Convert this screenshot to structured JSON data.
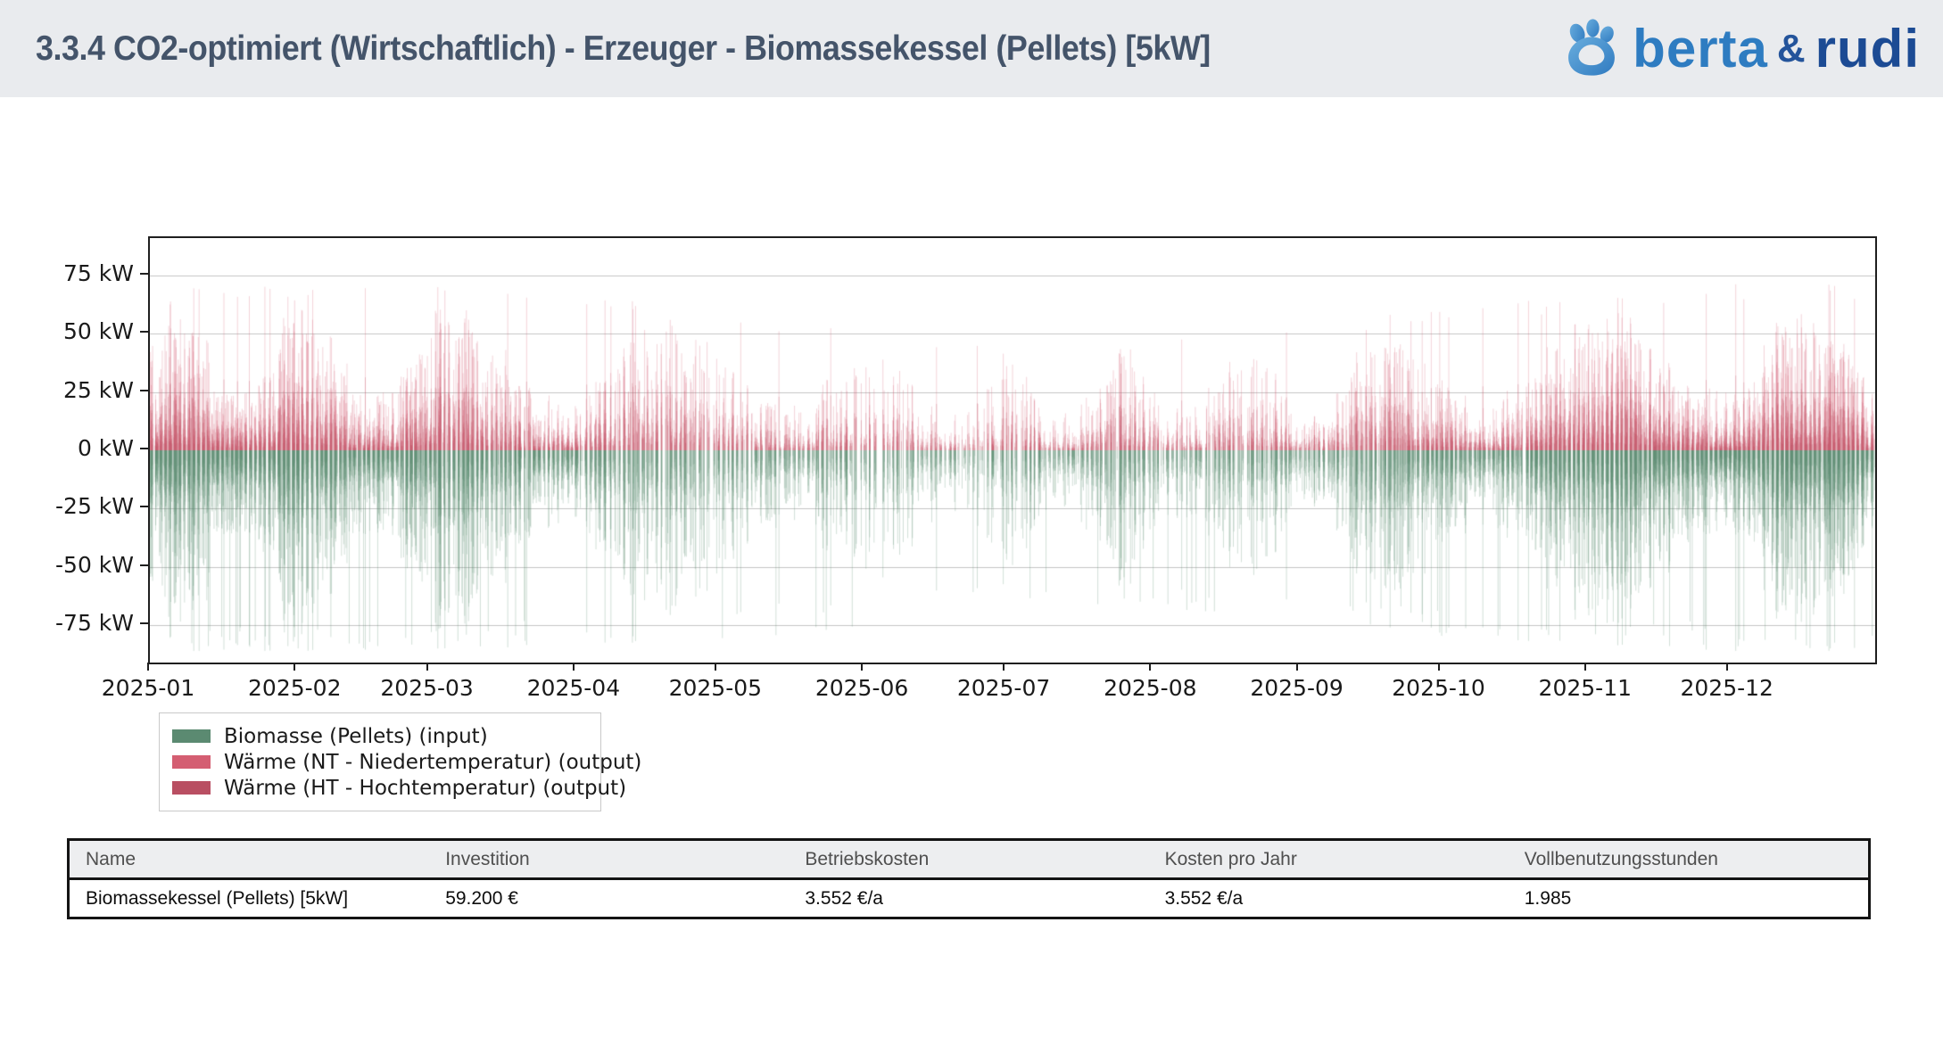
{
  "header": {
    "title": "3.3.4 CO2-optimiert (Wirtschaftlich) - Erzeuger - Biomassekessel (Pellets) [5kW]",
    "logo": {
      "text_primary": "berta",
      "text_amp": "&",
      "text_secondary": "rudi",
      "color_primary": "#2e7cc1",
      "color_secondary": "#1c4b94",
      "paw_color": "#4292d0"
    }
  },
  "chart_data": {
    "type": "bar",
    "title": "",
    "xlabel": "",
    "ylabel": "",
    "y_unit": "kW",
    "x_resolution": "hourly, year 2025",
    "ylim": [
      -91,
      91
    ],
    "grid": "horizontal",
    "gridline_values_kw": [
      75,
      50,
      25,
      -25,
      -50,
      -75
    ],
    "yticks_kw": [
      75,
      50,
      25,
      0,
      -25,
      -50,
      -75
    ],
    "ytick_labels": [
      "75 kW",
      "50 kW",
      "25 kW",
      "0 kW",
      "-25 kW",
      "-50 kW",
      "-75 kW"
    ],
    "xtick_labels": [
      "2025-01",
      "2025-02",
      "2025-03",
      "2025-04",
      "2025-05",
      "2025-06",
      "2025-07",
      "2025-08",
      "2025-09",
      "2025-10",
      "2025-11",
      "2025-12"
    ],
    "month_start_days": [
      0,
      31,
      59,
      90,
      120,
      151,
      181,
      212,
      243,
      273,
      304,
      334
    ],
    "days_per_year": 365,
    "legend_position": "below-left",
    "series": [
      {
        "name": "Biomasse (Pellets) (input)",
        "sign": "negative",
        "color": "#5b8a71"
      },
      {
        "name": "Wärme (NT - Niedertemperatur) (output)",
        "sign": "positive",
        "color": "#d4descr"
      },
      {
        "name": "Wärme (HT - Hochtemperatur) (output)",
        "sign": "positive",
        "color": "#bd5565"
      }
    ],
    "monthly_envelope": {
      "months": [
        "2025-01",
        "2025-02",
        "2025-03",
        "2025-04",
        "2025-05",
        "2025-06",
        "2025-07",
        "2025-08",
        "2025-09",
        "2025-10",
        "2025-11",
        "2025-12"
      ],
      "max_output_kw": [
        72,
        72,
        72,
        70,
        60,
        52,
        45,
        50,
        52,
        62,
        66,
        72
      ],
      "max_input_kw": [
        86,
        86,
        85,
        84,
        82,
        78,
        66,
        70,
        72,
        80,
        83,
        86
      ],
      "activity": [
        0.95,
        0.9,
        0.8,
        0.62,
        0.45,
        0.4,
        0.35,
        0.4,
        0.45,
        0.62,
        0.82,
        0.95
      ]
    },
    "bar_colors": {
      "output_nt": "#d45e72",
      "output_ht": "#b94f62",
      "input": "#55876c",
      "gridline": "#c5c5c5"
    }
  },
  "table": {
    "headers": [
      "Name",
      "Investition",
      "Betriebskosten",
      "Kosten pro Jahr",
      "Vollbenutzungsstunden"
    ],
    "rows": [
      [
        "Biomassekessel (Pellets) [5kW]",
        "59.200 €",
        "3.552 €/a",
        "3.552 €/a",
        "1.985"
      ]
    ]
  }
}
